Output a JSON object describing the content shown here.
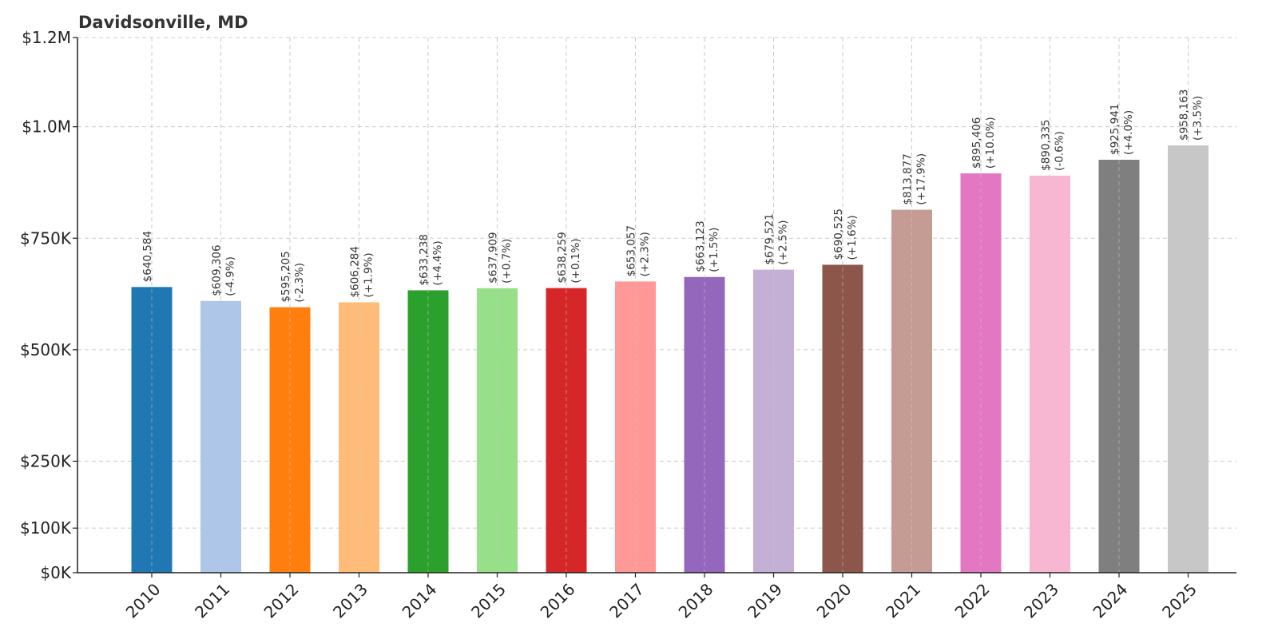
{
  "title": "Davidsonville, MD",
  "chart_data": {
    "type": "bar",
    "title": "Davidsonville, MD",
    "xlabel": "",
    "ylabel": "",
    "categories": [
      "2010",
      "2011",
      "2012",
      "2013",
      "2014",
      "2015",
      "2016",
      "2017",
      "2018",
      "2019",
      "2020",
      "2021",
      "2022",
      "2023",
      "2024",
      "2025"
    ],
    "values": [
      640584,
      609306,
      595205,
      606284,
      633238,
      637909,
      638259,
      653057,
      663123,
      679521,
      690525,
      813877,
      895406,
      890335,
      925941,
      958163
    ],
    "value_labels": [
      "$640,584",
      "$609,306",
      "$595,205",
      "$606,284",
      "$633,238",
      "$637,909",
      "$638,259",
      "$653,057",
      "$663,123",
      "$679,521",
      "$690,525",
      "$813,877",
      "$895,406",
      "$890,335",
      "$925,941",
      "$958,163"
    ],
    "change_labels": [
      "",
      "(-4.9%)",
      "(-2.3%)",
      "(+1.9%)",
      "(+4.4%)",
      "(+0.7%)",
      "(+0.1%)",
      "(+2.3%)",
      "(+1.5%)",
      "(+2.5%)",
      "(+1.6%)",
      "(+17.9%)",
      "(+10.0%)",
      "(-0.6%)",
      "(+4.0%)",
      "(+3.5%)"
    ],
    "colors": [
      "#1f77b4",
      "#aec7e8",
      "#ff7f0e",
      "#ffbb78",
      "#2ca02c",
      "#98df8a",
      "#d62728",
      "#ff9896",
      "#9467bd",
      "#c5b0d5",
      "#8c564b",
      "#c49c94",
      "#e377c2",
      "#f7b6d2",
      "#7f7f7f",
      "#c7c7c7"
    ],
    "ylim": [
      0,
      1200000
    ],
    "yticks": [
      0,
      100000,
      250000,
      500000,
      750000,
      1000000,
      1200000
    ],
    "ytick_labels": [
      "$0K",
      "$100K",
      "$250K",
      "$500K",
      "$750K",
      "$1.0M",
      "$1.2M"
    ],
    "grid": true
  }
}
